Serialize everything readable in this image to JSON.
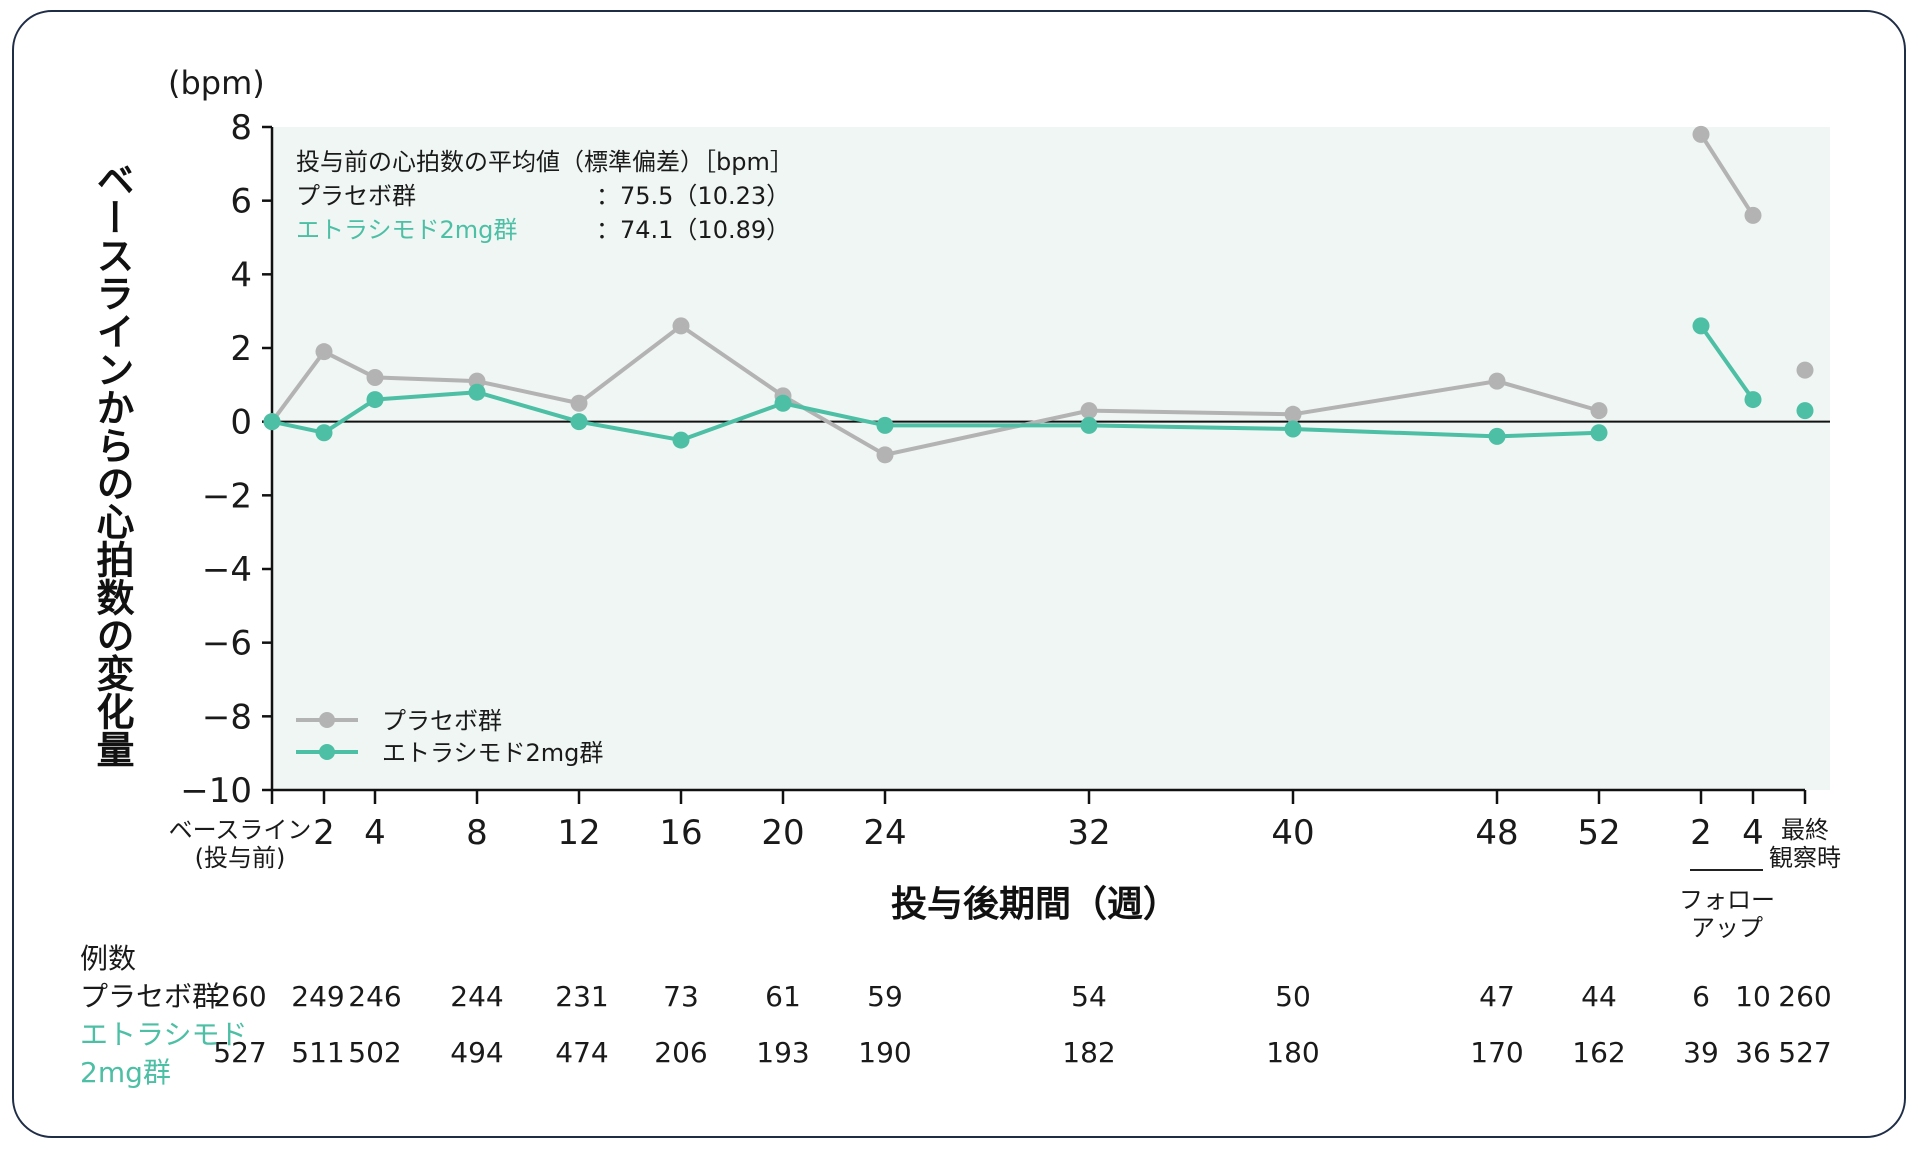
{
  "chart_data": {
    "type": "line",
    "unit_label": "(bpm)",
    "ylabel": "ベースラインからの心拍数の変化量",
    "xlabel": "投与後期間（週）",
    "ylim": [
      -10,
      8
    ],
    "yticks": [
      "8",
      "6",
      "4",
      "2",
      "0",
      "−2",
      "−4",
      "−6",
      "−8",
      "−10"
    ],
    "ytick_values": [
      8,
      6,
      4,
      2,
      0,
      -2,
      -4,
      -6,
      -8,
      -10
    ],
    "categories": [
      "ベースライン（投与前）",
      "2",
      "4",
      "8",
      "12",
      "16",
      "20",
      "24",
      "32",
      "40",
      "48",
      "52",
      "フォローアップ 2",
      "フォローアップ 4",
      "最終観察時"
    ],
    "xtick_labels": [
      "2",
      "4",
      "8",
      "12",
      "16",
      "20",
      "24",
      "32",
      "40",
      "48",
      "52",
      "2",
      "4"
    ],
    "baseline_label_1": "ベースライン",
    "baseline_label_2": "(投与前)",
    "final_label_1": "最終",
    "final_label_2": "観察時",
    "followup_label_1": "フォロー",
    "followup_label_2": "アップ",
    "series": [
      {
        "name": "プラセボ群",
        "color": "#b3b3b3",
        "values": [
          0,
          1.9,
          1.2,
          1.1,
          0.5,
          2.6,
          0.7,
          -0.9,
          0.3,
          0.2,
          1.1,
          0.3,
          7.8,
          5.6,
          1.4
        ]
      },
      {
        "name": "エトラシモド2mg群",
        "color": "#4cbfa4",
        "values": [
          0,
          -0.3,
          0.6,
          0.8,
          0.0,
          -0.5,
          0.5,
          -0.1,
          -0.1,
          -0.2,
          -0.4,
          -0.3,
          2.6,
          0.6,
          0.3
        ]
      }
    ],
    "stats_box": {
      "title": "投与前の心拍数の平均値（標準偏差）［bpm］",
      "rows": [
        {
          "label": "プラセボ群",
          "value": "：75.5（10.23）"
        },
        {
          "label": "エトラシモド2mg群",
          "value": "：74.1（10.89）"
        }
      ]
    },
    "n_table": {
      "title": "例数",
      "rows": [
        {
          "label": "プラセボ群",
          "values": [
            "260",
            "249",
            "246",
            "244",
            "231",
            "73",
            "61",
            "59",
            "54",
            "50",
            "47",
            "44",
            "6",
            "10",
            "260"
          ]
        },
        {
          "label_1": "エトラシモド",
          "label_2": "2mg群",
          "values": [
            "527",
            "511",
            "502",
            "494",
            "474",
            "206",
            "193",
            "190",
            "182",
            "180",
            "170",
            "162",
            "39",
            "36",
            "527"
          ]
        }
      ]
    },
    "grid": false,
    "legend_position": "bottom-left",
    "background_color": "#eff6f4"
  }
}
